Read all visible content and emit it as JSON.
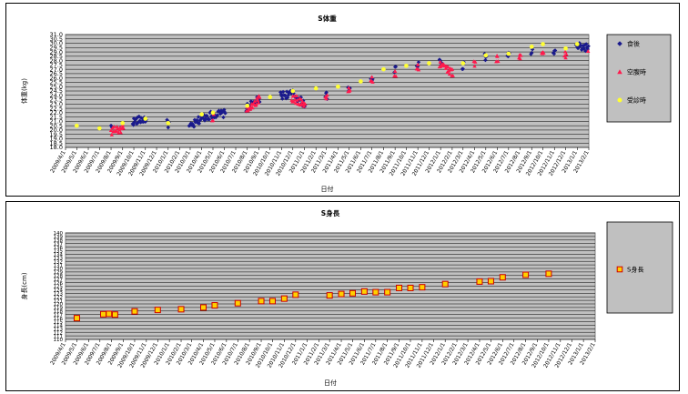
{
  "charts": [
    {
      "type": "scatter",
      "title": "S体重",
      "xlabel": "日付",
      "ylabel": "体重(kg)",
      "ylim": [
        18.0,
        31.0
      ],
      "ytick_step": 0.5,
      "grid": true,
      "legend_position": "right",
      "x_ticks": [
        "2009/4/1",
        "2009/5/1",
        "2009/6/1",
        "2009/7/1",
        "2009/8/1",
        "2009/9/1",
        "2009/10/1",
        "2009/11/1",
        "2009/12/1",
        "2010/1/1",
        "2010/2/1",
        "2010/3/1",
        "2010/4/1",
        "2010/5/1",
        "2010/6/1",
        "2010/7/1",
        "2010/8/1",
        "2010/9/1",
        "2010/10/1",
        "2010/11/1",
        "2010/12/1",
        "2011/1/1",
        "2011/2/1",
        "2011/3/1",
        "2011/4/1",
        "2011/5/1",
        "2011/6/1",
        "2011/7/1",
        "2011/8/1",
        "2011/9/1",
        "2011/10/1",
        "2011/11/1",
        "2011/12/1",
        "2012/1/1",
        "2012/2/1",
        "2012/3/1",
        "2012/4/1",
        "2012/5/1",
        "2012/6/1",
        "2012/7/1",
        "2012/8/1",
        "2012/9/1",
        "2012/10/1",
        "2012/11/1",
        "2012/12/1",
        "2013/1/1",
        "2013/2/1"
      ],
      "series": [
        {
          "name": "食後",
          "marker": "diamond",
          "color": "#1a1a8c",
          "trend": [
            [
              "2009/8/1",
              20.3
            ],
            [
              "2009/10/1",
              21.0
            ],
            [
              "2009/11/1",
              21.3
            ],
            [
              "2010/1/1",
              20.7
            ],
            [
              "2010/3/1",
              20.3
            ],
            [
              "2010/4/1",
              21.4
            ],
            [
              "2010/5/1",
              21.8
            ],
            [
              "2010/6/1",
              21.9
            ],
            [
              "2010/8/1",
              22.6
            ],
            [
              "2010/9/1",
              23.5
            ],
            [
              "2010/11/1",
              24.0
            ],
            [
              "2010/12/1",
              24.2
            ],
            [
              "2011/1/1",
              23.0
            ],
            [
              "2011/3/1",
              24.0
            ],
            [
              "2011/5/1",
              24.5
            ],
            [
              "2011/7/1",
              26.0
            ],
            [
              "2011/9/1",
              27.0
            ],
            [
              "2011/11/1",
              27.7
            ],
            [
              "2012/1/1",
              28.0
            ],
            [
              "2012/3/1",
              27.4
            ],
            [
              "2012/5/1",
              28.4
            ],
            [
              "2012/7/1",
              28.6
            ],
            [
              "2012/9/1",
              29.0
            ],
            [
              "2012/11/1",
              29.0
            ],
            [
              "2013/1/1",
              29.6
            ],
            [
              "2013/2/1",
              29.5
            ]
          ],
          "spread": 0.45
        },
        {
          "name": "空腹時",
          "marker": "triangle",
          "color": "#ff1a4d",
          "trend": [
            [
              "2009/8/1",
              19.9
            ],
            [
              "2009/9/1",
              20.2
            ],
            [
              "2010/5/1",
              21.5
            ],
            [
              "2010/8/1",
              22.3
            ],
            [
              "2010/9/1",
              23.5
            ],
            [
              "2010/12/1",
              23.7
            ],
            [
              "2011/1/1",
              23.1
            ],
            [
              "2011/3/1",
              23.7
            ],
            [
              "2011/5/1",
              24.5
            ],
            [
              "2011/7/1",
              25.8
            ],
            [
              "2011/9/1",
              26.6
            ],
            [
              "2011/11/1",
              27.2
            ],
            [
              "2012/1/1",
              27.6
            ],
            [
              "2012/2/1",
              26.6
            ],
            [
              "2012/4/1",
              27.7
            ],
            [
              "2012/6/1",
              28.2
            ],
            [
              "2012/8/1",
              28.4
            ],
            [
              "2012/10/1",
              28.8
            ],
            [
              "2012/12/1",
              28.6
            ],
            [
              "2013/2/1",
              29.0
            ]
          ],
          "spread": 0.45
        },
        {
          "name": "受診時",
          "marker": "circle",
          "color": "#ffff33",
          "points": [
            [
              "2009/5/1",
              20.5
            ],
            [
              "2009/7/1",
              20.2
            ],
            [
              "2009/9/1",
              20.8
            ],
            [
              "2009/11/1",
              21.3
            ],
            [
              "2010/1/1",
              20.8
            ],
            [
              "2010/4/1",
              21.8
            ],
            [
              "2010/5/1",
              22.0
            ],
            [
              "2010/8/1",
              22.8
            ],
            [
              "2010/10/1",
              23.8
            ],
            [
              "2010/12/1",
              24.5
            ],
            [
              "2011/2/1",
              24.8
            ],
            [
              "2011/4/1",
              25.0
            ],
            [
              "2011/6/1",
              25.6
            ],
            [
              "2011/8/1",
              27.0
            ],
            [
              "2011/10/1",
              27.4
            ],
            [
              "2011/12/1",
              27.7
            ],
            [
              "2012/3/1",
              27.7
            ],
            [
              "2012/5/1",
              28.6
            ],
            [
              "2012/7/1",
              28.8
            ],
            [
              "2012/9/1",
              29.6
            ],
            [
              "2012/10/1",
              29.9
            ],
            [
              "2012/12/1",
              29.4
            ],
            [
              "2013/1/1",
              29.9
            ]
          ]
        }
      ]
    },
    {
      "type": "scatter",
      "title": "S身長",
      "xlabel": "日付",
      "ylabel": "身長(cm)",
      "ylim": [
        110,
        140
      ],
      "ytick_step": 1,
      "grid": true,
      "legend_position": "right",
      "x_ticks": [
        "2009/4/1",
        "2009/5/1",
        "2009/6/1",
        "2009/7/1",
        "2009/8/1",
        "2009/9/1",
        "2009/10/1",
        "2009/11/1",
        "2009/12/1",
        "2010/1/1",
        "2010/2/1",
        "2010/3/1",
        "2010/4/1",
        "2010/5/1",
        "2010/6/1",
        "2010/7/1",
        "2010/8/1",
        "2010/9/1",
        "2010/10/1",
        "2010/11/1",
        "2010/12/1",
        "2011/1/1",
        "2011/2/1",
        "2011/3/1",
        "2011/4/1",
        "2011/5/1",
        "2011/6/1",
        "2011/7/1",
        "2011/8/1",
        "2011/9/1",
        "2011/10/1",
        "2011/11/1",
        "2011/12/1",
        "2012/1/1",
        "2012/2/1",
        "2012/3/1",
        "2012/4/1",
        "2012/5/1",
        "2012/6/1",
        "2012/7/1",
        "2012/8/1",
        "2012/9/1",
        "2012/10/1",
        "2012/11/1",
        "2012/12/1",
        "2013/1/1",
        "2013/2/1"
      ],
      "series": [
        {
          "name": "S身長",
          "marker": "square",
          "color": "#ffd000",
          "edge": "#cc0000",
          "points": [
            [
              "2009/5/1",
              116.0
            ],
            [
              "2009/7/10",
              117.1
            ],
            [
              "2009/7/25",
              117.2
            ],
            [
              "2009/8/10",
              117.0
            ],
            [
              "2009/10/1",
              117.9
            ],
            [
              "2009/12/1",
              118.3
            ],
            [
              "2010/2/1",
              118.5
            ],
            [
              "2010/4/1",
              119.0
            ],
            [
              "2010/5/1",
              119.6
            ],
            [
              "2010/7/1",
              120.2
            ],
            [
              "2010/9/1",
              120.8
            ],
            [
              "2010/10/1",
              120.8
            ],
            [
              "2010/11/1",
              121.5
            ],
            [
              "2010/12/1",
              122.6
            ],
            [
              "2011/3/1",
              122.4
            ],
            [
              "2011/4/1",
              122.8
            ],
            [
              "2011/5/1",
              123.0
            ],
            [
              "2011/6/1",
              123.5
            ],
            [
              "2011/7/1",
              123.3
            ],
            [
              "2011/8/1",
              123.3
            ],
            [
              "2011/9/1",
              124.5
            ],
            [
              "2011/10/1",
              124.5
            ],
            [
              "2011/11/1",
              124.7
            ],
            [
              "2012/1/1",
              125.6
            ],
            [
              "2012/4/1",
              126.3
            ],
            [
              "2012/5/1",
              126.4
            ],
            [
              "2012/6/1",
              127.5
            ],
            [
              "2012/8/1",
              128.2
            ],
            [
              "2012/10/1",
              128.5
            ]
          ]
        }
      ]
    }
  ]
}
